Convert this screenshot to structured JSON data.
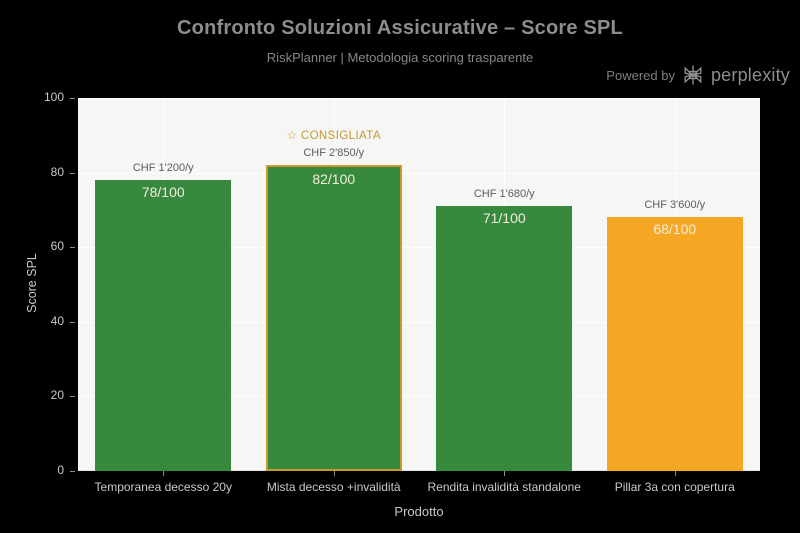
{
  "header": {
    "title": "Confronto Soluzioni Assicurative – Score SPL",
    "subtitle": "RiskPlanner | Metodologia scoring trasparente",
    "powered_by_label": "Powered by",
    "brand_name": "perplexity"
  },
  "chart_data": {
    "type": "bar",
    "title": "Confronto Soluzioni Assicurative – Score SPL",
    "subtitle": "RiskPlanner | Metodologia scoring trasparente",
    "xlabel": "Prodotto",
    "ylabel": "Score SPL",
    "ylim": [
      0,
      100
    ],
    "yticks": [
      0,
      20,
      40,
      60,
      80,
      100
    ],
    "grid": true,
    "legend": false,
    "categories": [
      "Temporanea decesso 20y",
      "Mista decesso +invalidità",
      "Rendita invalidità standalone",
      "Pillar 3a con copertura"
    ],
    "values": [
      78,
      82,
      71,
      68
    ],
    "value_labels": [
      "78/100",
      "82/100",
      "71/100",
      "68/100"
    ],
    "premium_labels": [
      "CHF 1'200/y",
      "CHF 2'850/y",
      "CHF 1'680/y",
      "CHF 3'600/y"
    ],
    "bar_colors": [
      "#37893d",
      "#37893d",
      "#37893d",
      "#f5a623"
    ],
    "highlight": {
      "index": 1,
      "border_color": "#c8992f",
      "annotation": "☆ CONSIGLIATA",
      "annotation_color": "#c49733"
    }
  },
  "colors": {
    "page_bg": "#000000",
    "plot_bg": "#f6f6f4",
    "grid": "#ffffff",
    "title_text": "#8d8d8d",
    "axis_text": "#c9c9c9",
    "bar_value_text": "#f3eedd",
    "premium_text": "#5d5d5d",
    "accent_gold": "#c8992f",
    "green": "#37893d",
    "orange": "#f5a623"
  }
}
